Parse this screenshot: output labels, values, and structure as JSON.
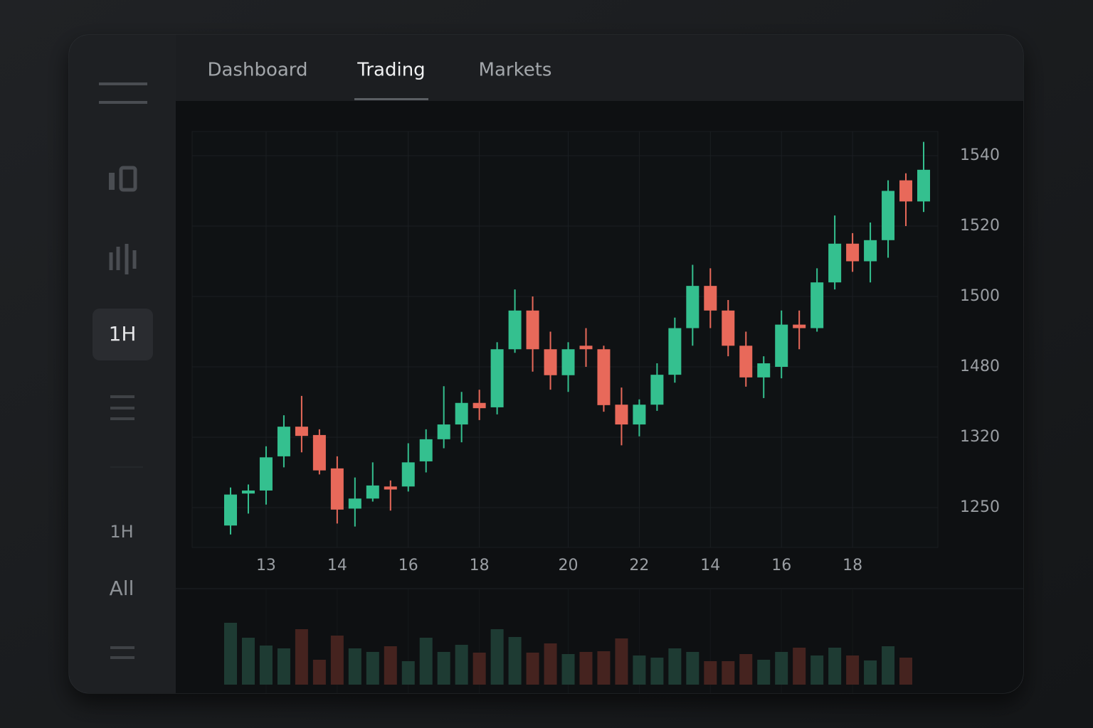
{
  "tabs": [
    {
      "label": "Dashboard",
      "active": false
    },
    {
      "label": "Trading",
      "active": true
    },
    {
      "label": "Markets",
      "active": false
    }
  ],
  "sidebar": {
    "timeframe": "1H",
    "options": [
      "1H",
      "All"
    ]
  },
  "chart_data": {
    "type": "candlestick",
    "categories": [
      null,
      null,
      "13",
      null,
      null,
      null,
      "14",
      null,
      null,
      null,
      "16",
      null,
      null,
      null,
      "18",
      null,
      null,
      null,
      null,
      "20",
      null,
      null,
      null,
      "22",
      null,
      null,
      null,
      "14",
      null,
      null,
      null,
      "16",
      null,
      null,
      null,
      "18",
      null,
      null,
      null,
      null
    ],
    "open": [
      1232,
      1264,
      1267,
      1301,
      1344,
      1325,
      1289,
      1249,
      1259,
      1271,
      1271,
      1296,
      1318,
      1349,
      1398,
      1388,
      1485,
      1496,
      1485,
      1461,
      1486,
      1485,
      1394,
      1349,
      1394,
      1462,
      1491,
      1503,
      1496,
      1486,
      1456,
      1480,
      1492,
      1491,
      1504,
      1515,
      1510,
      1516,
      1533,
      1527
    ],
    "high": [
      1270,
      1273,
      1311,
      1370,
      1414,
      1338,
      1301,
      1280,
      1295,
      1277,
      1314,
      1338,
      1436,
      1423,
      1428,
      1487,
      1502,
      1500,
      1490,
      1487,
      1491,
      1486,
      1433,
      1406,
      1481,
      1494,
      1509,
      1508,
      1499,
      1490,
      1483,
      1496,
      1496,
      1508,
      1523,
      1518,
      1521,
      1533,
      1535,
      1544
    ],
    "low": [
      1223,
      1244,
      1253,
      1290,
      1305,
      1283,
      1234,
      1231,
      1256,
      1247,
      1266,
      1285,
      1309,
      1315,
      1359,
      1372,
      1484,
      1469,
      1428,
      1423,
      1480,
      1378,
      1312,
      1322,
      1380,
      1444,
      1486,
      1491,
      1483,
      1435,
      1409,
      1454,
      1485,
      1490,
      1502,
      1507,
      1504,
      1511,
      1520,
      1524
    ],
    "close": [
      1263,
      1267,
      1300,
      1344,
      1323,
      1287,
      1248,
      1259,
      1272,
      1268,
      1295,
      1318,
      1349,
      1398,
      1386,
      1485,
      1496,
      1485,
      1461,
      1485,
      1485,
      1393,
      1349,
      1394,
      1462,
      1491,
      1503,
      1496,
      1486,
      1456,
      1481,
      1492,
      1491,
      1504,
      1515,
      1510,
      1516,
      1530,
      1527,
      1536
    ],
    "volume": [
      87,
      66,
      55,
      51,
      78,
      35,
      69,
      51,
      46,
      54,
      33,
      66,
      46,
      56,
      45,
      78,
      67,
      45,
      58,
      43,
      46,
      47,
      65,
      41,
      38,
      51,
      46,
      33,
      33,
      43,
      35,
      46,
      52,
      41,
      52,
      41,
      34,
      54,
      38,
      null
    ],
    "up_color": "#34c08f",
    "down_color": "#e8695a",
    "volume_up_color": "#1e3b33",
    "volume_down_color": "#45231f",
    "ylim": [
      1210,
      1547
    ],
    "yticks": [
      1250,
      1320,
      1480,
      1500,
      1520,
      1540
    ],
    "y_axis_side": "right",
    "grid": true
  }
}
